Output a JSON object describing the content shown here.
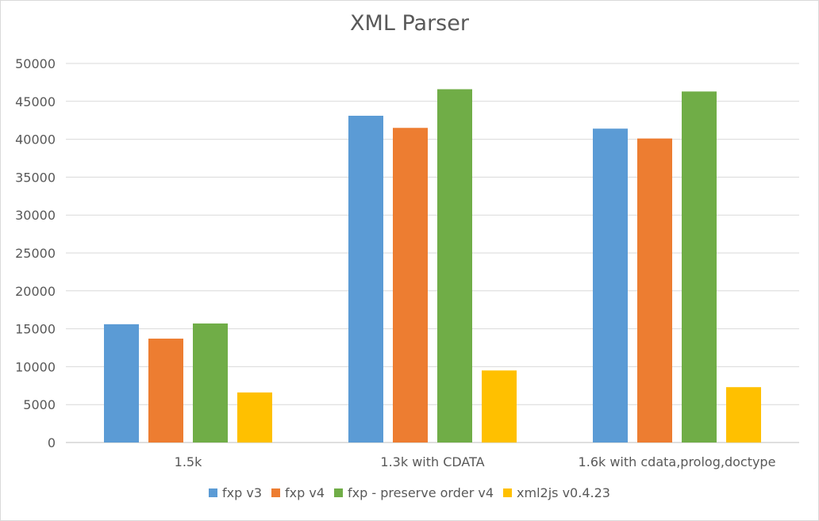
{
  "chart_data": {
    "type": "bar",
    "title": "XML Parser",
    "xlabel": "",
    "ylabel": "",
    "ylim": [
      0,
      50000
    ],
    "yticks": [
      0,
      5000,
      10000,
      15000,
      20000,
      25000,
      30000,
      35000,
      40000,
      45000,
      50000
    ],
    "grid": true,
    "legend_position": "bottom",
    "categories": [
      "1.5k",
      "1.3k with CDATA",
      "1.6k with cdata,prolog,doctype"
    ],
    "series": [
      {
        "name": "fxp v3",
        "color": "#5b9bd5",
        "values": [
          15600,
          43100,
          41400
        ]
      },
      {
        "name": "fxp v4",
        "color": "#ed7d31",
        "values": [
          13700,
          41500,
          40100
        ]
      },
      {
        "name": "fxp - preserve order v4",
        "color": "#70ad47",
        "values": [
          15700,
          46600,
          46300
        ]
      },
      {
        "name": "xml2js v0.4.23",
        "color": "#ffc000",
        "values": [
          6600,
          9500,
          7300
        ]
      }
    ]
  }
}
